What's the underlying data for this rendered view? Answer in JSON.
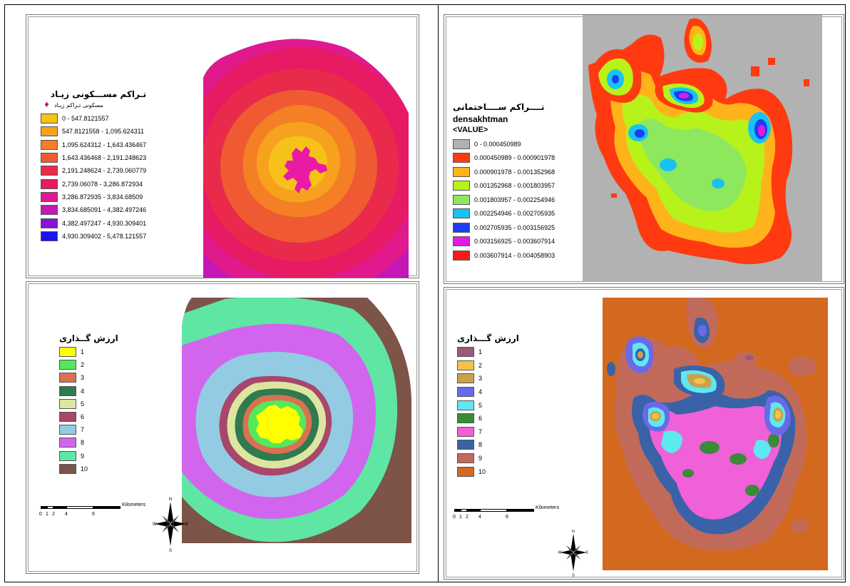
{
  "panels": {
    "top_left": {
      "legend_title": "تـراکم مســـکونی زیـاد",
      "marker_label": "مسکونی تـراکم زیـاد",
      "items": [
        {
          "label": "0 - 547.8121557",
          "color": "#f6c21a"
        },
        {
          "label": "547.8121558 - 1,095.624311",
          "color": "#f7a21e"
        },
        {
          "label": "1,095.624312 - 1,643.436467",
          "color": "#f47f25"
        },
        {
          "label": "1,643.436468 - 2,191.248623",
          "color": "#ef5a33"
        },
        {
          "label": "2,191.248624 - 2,739.060779",
          "color": "#ea2a4a"
        },
        {
          "label": "2,739.06078 - 3,286.872934",
          "color": "#e71a64"
        },
        {
          "label": "3,286.872935 - 3,834.68509",
          "color": "#e01a8d"
        },
        {
          "label": "3,834.685091 - 4,382.497246",
          "color": "#c318b6"
        },
        {
          "label": "4,382.497247 - 4,930.309401",
          "color": "#8a12d8"
        },
        {
          "label": "4,930.309402 - 5,478.121557",
          "color": "#1a12f0"
        }
      ]
    },
    "top_right": {
      "legend_title": "تــــراکم ســــاختمانی",
      "layer_name": "densakhtman",
      "field_name": "<VALUE>",
      "items": [
        {
          "label": "0 - 0.000450989",
          "color": "#b2b2b2"
        },
        {
          "label": "0.000450989 - 0.000901978",
          "color": "#ff3a10"
        },
        {
          "label": "0.000901978 - 0.001352968",
          "color": "#ffb31a"
        },
        {
          "label": "0.001352968 - 0.001803957",
          "color": "#b7f21b"
        },
        {
          "label": "0.001803957 - 0.002254946",
          "color": "#8de85e"
        },
        {
          "label": "0.002254946 - 0.002705935",
          "color": "#19c2f2"
        },
        {
          "label": "0.002705935 - 0.003156925",
          "color": "#1d3ef0"
        },
        {
          "label": "0.003156925 - 0.003607914",
          "color": "#e21ae6"
        },
        {
          "label": "0.003607914 - 0.004058903",
          "color": "#ff1717"
        }
      ]
    },
    "bottom_left": {
      "legend_title": "ارزش گــذاری",
      "items": [
        {
          "label": "1",
          "color": "#ffff00"
        },
        {
          "label": "2",
          "color": "#55e85a"
        },
        {
          "label": "3",
          "color": "#d97153"
        },
        {
          "label": "4",
          "color": "#2f7a4e"
        },
        {
          "label": "5",
          "color": "#dde6a0"
        },
        {
          "label": "6",
          "color": "#a8466b"
        },
        {
          "label": "7",
          "color": "#93cbe2"
        },
        {
          "label": "8",
          "color": "#d265ee"
        },
        {
          "label": "9",
          "color": "#5fe6a4"
        },
        {
          "label": "10",
          "color": "#7d5448"
        }
      ],
      "scale": {
        "ticks": [
          "0",
          "1",
          "2",
          "4",
          "6"
        ],
        "unit": "Kilometers"
      },
      "north": {
        "n": "N",
        "s": "S",
        "e": "E",
        "w": "W"
      }
    },
    "bottom_right": {
      "legend_title": "ارزش گـــذاری",
      "items": [
        {
          "label": "1",
          "color": "#9a5a7a"
        },
        {
          "label": "2",
          "color": "#f5c34a"
        },
        {
          "label": "3",
          "color": "#c8a24e"
        },
        {
          "label": "4",
          "color": "#6a6ae8"
        },
        {
          "label": "5",
          "color": "#5ee8f0"
        },
        {
          "label": "6",
          "color": "#3b8a3a"
        },
        {
          "label": "7",
          "color": "#f060d8"
        },
        {
          "label": "8",
          "color": "#3a62a8"
        },
        {
          "label": "9",
          "color": "#c26a5a"
        },
        {
          "label": "10",
          "color": "#d2691e"
        }
      ],
      "scale": {
        "ticks": [
          "0",
          "1",
          "2",
          "4",
          "6"
        ],
        "unit": "Kilometers"
      },
      "north": {
        "n": "N",
        "s": "S",
        "e": "E",
        "w": "W"
      }
    }
  }
}
